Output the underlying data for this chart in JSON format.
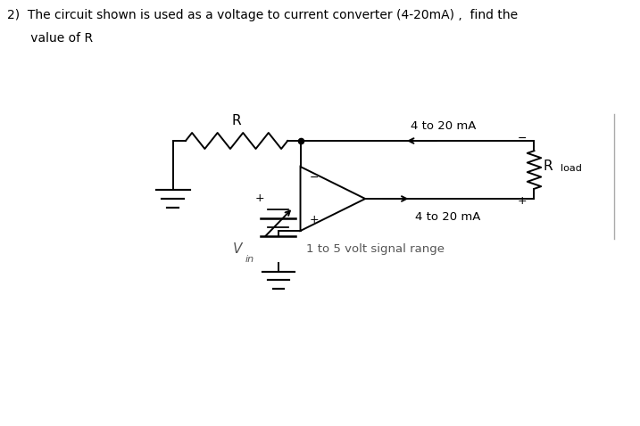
{
  "title_line1": "2)  The circuit shown is used as a voltage to current converter (4-20mA) ,  find the",
  "title_line2": "      value of R",
  "bg_color": "#ffffff",
  "line_color": "#000000",
  "figsize": [
    7.17,
    4.78
  ],
  "dpi": 100,
  "label_R": "R",
  "label_4to20_top": "4 to 20 mA",
  "label_4to20_mid": "4 to 20 mA",
  "label_Vin": "V",
  "label_vin_sub": "in",
  "label_1to5": "1 to 5 volt signal range",
  "label_Rload": "R",
  "label_Rload_sub": "load",
  "label_plus_opamp": "+",
  "label_minus_opamp": "−",
  "label_minus_rload": "−",
  "label_plus_rload": "+",
  "label_plus_vin": "+"
}
